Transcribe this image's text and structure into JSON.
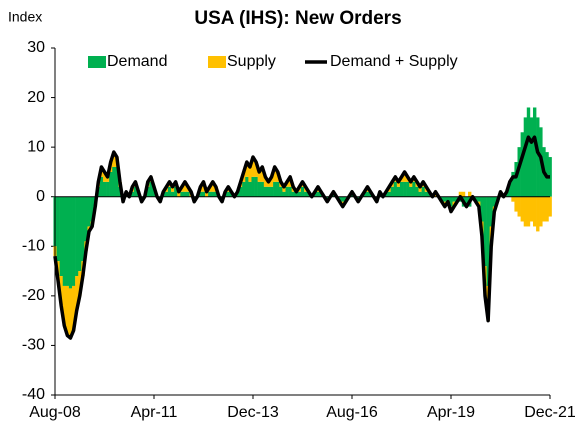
{
  "chart_data": {
    "type": "bar",
    "stacked": true,
    "title": "USA (IHS): New Orders",
    "y_label": "Index",
    "categories": [
      "Aug-08",
      null,
      null,
      null,
      null,
      null,
      null,
      null,
      null,
      null,
      null,
      null,
      null,
      null,
      null,
      null,
      null,
      null,
      null,
      null,
      null,
      null,
      null,
      null,
      null,
      null,
      null,
      null,
      null,
      null,
      null,
      null,
      "Apr-11",
      null,
      null,
      null,
      null,
      null,
      null,
      null,
      null,
      null,
      null,
      null,
      null,
      null,
      null,
      null,
      null,
      null,
      null,
      null,
      null,
      null,
      null,
      null,
      null,
      null,
      null,
      null,
      null,
      null,
      null,
      null,
      "Dec-13",
      null,
      null,
      null,
      null,
      null,
      null,
      null,
      null,
      null,
      null,
      null,
      null,
      null,
      null,
      null,
      null,
      null,
      null,
      null,
      null,
      null,
      null,
      null,
      null,
      null,
      null,
      null,
      null,
      null,
      null,
      null,
      "Aug-16",
      null,
      null,
      null,
      null,
      null,
      null,
      null,
      null,
      null,
      null,
      null,
      null,
      null,
      null,
      null,
      null,
      null,
      null,
      null,
      null,
      null,
      null,
      null,
      null,
      null,
      null,
      null,
      null,
      null,
      null,
      null,
      "Apr-19",
      null,
      null,
      null,
      null,
      null,
      null,
      null,
      null,
      null,
      null,
      null,
      null,
      null,
      null,
      null,
      null,
      null,
      null,
      null,
      null,
      null,
      null,
      null,
      null,
      null,
      null,
      null,
      null,
      null,
      null,
      null,
      "Dec-21"
    ],
    "series": [
      {
        "name": "Demand",
        "color": "#00b050",
        "values": [
          -10,
          -13,
          -16,
          -18,
          -18,
          -18.5,
          -18,
          -16,
          -15,
          -13,
          -9,
          -6,
          -5,
          -2,
          2,
          4,
          3,
          3,
          5,
          6,
          6,
          2,
          -1,
          1,
          0,
          1,
          2,
          1,
          -1,
          0,
          2,
          3,
          2,
          0,
          -1,
          1,
          1,
          2,
          1,
          2,
          0,
          1,
          1,
          1,
          0,
          -1,
          0,
          1,
          1,
          0,
          1,
          1,
          1,
          0,
          -1,
          1,
          1,
          1,
          0,
          1,
          2,
          3,
          4,
          3,
          4,
          4,
          3,
          3,
          2,
          2,
          2,
          3,
          3,
          2,
          1,
          2,
          2,
          1,
          1,
          1,
          2,
          1,
          1,
          0,
          1,
          1,
          1,
          0,
          -1,
          0,
          1,
          0,
          -1,
          -1,
          -1,
          0,
          1,
          0,
          -1,
          0,
          1,
          1,
          1,
          0,
          -1,
          1,
          0,
          1,
          1,
          2,
          3,
          2,
          3,
          3,
          3,
          2,
          3,
          2,
          1,
          2,
          1,
          1,
          0,
          0,
          0,
          -1,
          -1,
          -1,
          -2,
          -1,
          -1,
          -1,
          -2,
          -2,
          -2,
          0,
          -1,
          -1,
          -5,
          -14,
          -18,
          -6,
          -2,
          -1,
          0,
          0,
          1,
          3,
          5,
          7,
          10,
          13,
          16,
          18,
          16,
          18,
          16,
          14,
          10,
          9,
          8
        ]
      },
      {
        "name": "Supply",
        "color": "#ffc000",
        "values": [
          -2,
          -4,
          -6,
          -8,
          -10,
          -10,
          -9,
          -7,
          -5,
          -3,
          -2,
          -1,
          -1,
          0,
          1,
          2,
          2,
          1,
          2,
          3,
          2,
          1,
          0,
          0,
          0,
          1,
          1,
          0,
          0,
          0,
          1,
          1,
          0,
          0,
          0,
          0,
          1,
          1,
          1,
          1,
          1,
          1,
          2,
          1,
          1,
          0,
          0,
          1,
          2,
          1,
          1,
          2,
          1,
          0,
          0,
          0,
          1,
          0,
          0,
          0,
          1,
          2,
          3,
          3,
          4,
          3,
          2,
          3,
          2,
          1,
          2,
          3,
          2,
          1,
          1,
          1,
          2,
          1,
          0,
          1,
          1,
          1,
          0,
          0,
          0,
          1,
          0,
          0,
          0,
          0,
          0,
          0,
          0,
          -1,
          0,
          0,
          0,
          0,
          0,
          0,
          0,
          1,
          0,
          0,
          0,
          0,
          0,
          0,
          1,
          1,
          1,
          1,
          1,
          2,
          1,
          1,
          1,
          1,
          1,
          1,
          1,
          0,
          0,
          1,
          0,
          0,
          -1,
          0,
          -1,
          -1,
          0,
          1,
          1,
          0,
          1,
          0,
          0,
          -1,
          -3,
          -6,
          -7,
          -4,
          -1,
          0,
          1,
          0,
          0,
          0,
          -1,
          -3,
          -4,
          -5,
          -6,
          -6,
          -5,
          -6,
          -7,
          -6,
          -5,
          -5,
          -4
        ]
      },
      {
        "name": "Demand + Supply",
        "color": "#000000",
        "type": "line",
        "values": [
          -12,
          -17,
          -22,
          -26,
          -28,
          -28.5,
          -27,
          -23,
          -20,
          -16,
          -11,
          -7,
          -6,
          -2,
          3,
          6,
          5,
          4,
          7,
          9,
          8,
          3,
          -1,
          1,
          0,
          2,
          3,
          1,
          -1,
          0,
          3,
          4,
          2,
          0,
          -1,
          1,
          2,
          3,
          2,
          3,
          1,
          2,
          3,
          2,
          1,
          -1,
          0,
          2,
          3,
          1,
          2,
          3,
          2,
          0,
          -1,
          1,
          2,
          1,
          0,
          1,
          3,
          5,
          7,
          6,
          8,
          7,
          5,
          6,
          4,
          3,
          4,
          6,
          5,
          3,
          2,
          3,
          4,
          2,
          1,
          2,
          3,
          2,
          1,
          0,
          1,
          2,
          1,
          0,
          -1,
          0,
          1,
          0,
          -1,
          -2,
          -1,
          0,
          1,
          0,
          -1,
          0,
          1,
          2,
          1,
          0,
          -1,
          1,
          0,
          1,
          2,
          3,
          4,
          3,
          4,
          5,
          4,
          3,
          4,
          3,
          2,
          3,
          2,
          1,
          0,
          1,
          0,
          -1,
          -2,
          -1,
          -3,
          -2,
          -1,
          0,
          -1,
          -2,
          -1,
          0,
          -1,
          -2,
          -8,
          -20,
          -25,
          -10,
          -3,
          -1,
          1,
          0,
          1,
          3,
          4,
          4,
          6,
          8,
          10,
          12,
          11,
          12,
          9,
          8,
          5,
          4,
          4
        ]
      }
    ],
    "ylim": [
      -40,
      30
    ],
    "yticks": [
      -40,
      -30,
      -20,
      -10,
      0,
      10,
      20,
      30
    ],
    "legend": "top",
    "grid": false
  }
}
